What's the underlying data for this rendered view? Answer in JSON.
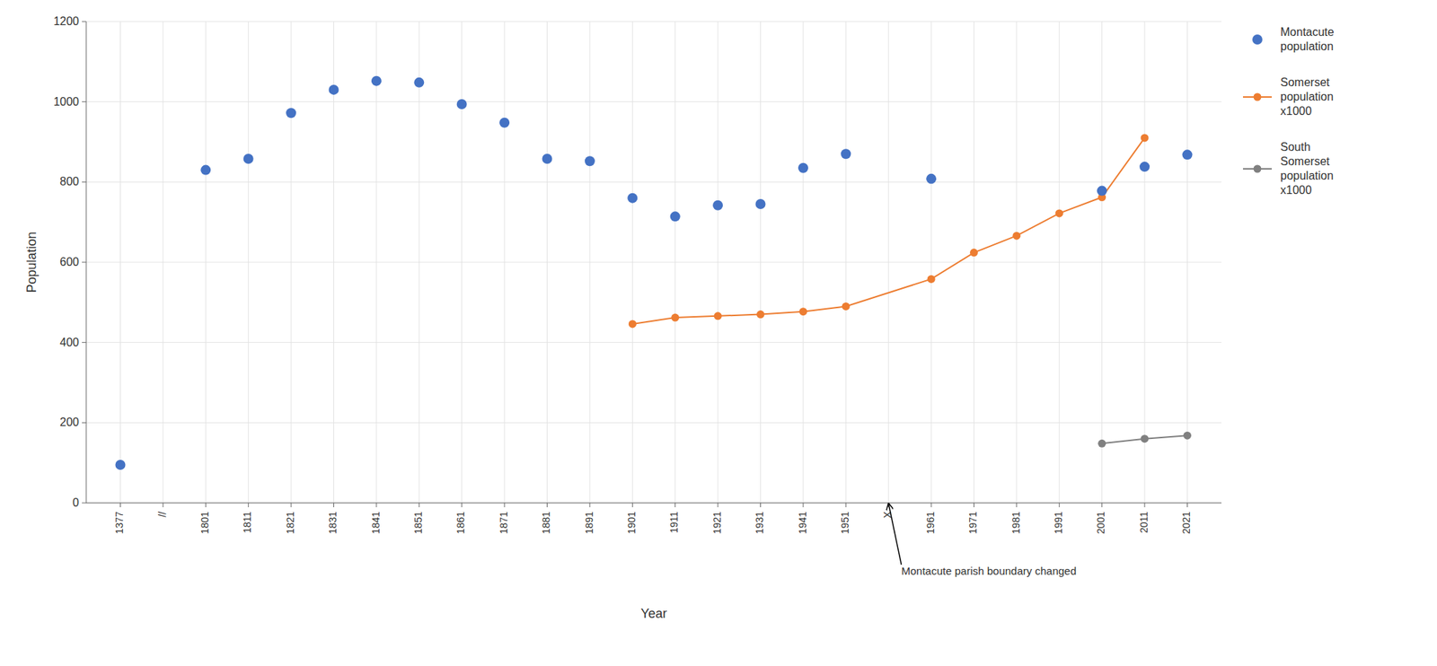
{
  "chart_data": {
    "type": "line",
    "xlabel": "Year",
    "ylabel": "Population",
    "categories": [
      "1377",
      "//",
      "1801",
      "1811",
      "1821",
      "1831",
      "1841",
      "1851",
      "1861",
      "1871",
      "1881",
      "1891",
      "1901",
      "1911",
      "1921",
      "1931",
      "1941",
      "1951",
      "X",
      "1961",
      "1971",
      "1981",
      "1991",
      "2001",
      "2011",
      "2021"
    ],
    "series": [
      {
        "name": "Montacute\npopulation",
        "type": "scatter",
        "color": "#4472C4",
        "marker": "circle",
        "x": [
          "1377",
          "1801",
          "1811",
          "1821",
          "1831",
          "1841",
          "1851",
          "1861",
          "1871",
          "1881",
          "1891",
          "1901",
          "1911",
          "1921",
          "1931",
          "1941",
          "1951",
          "1961",
          "2001",
          "2011",
          "2021"
        ],
        "values": [
          95,
          830,
          858,
          972,
          1030,
          1052,
          1048,
          994,
          948,
          858,
          852,
          760,
          714,
          742,
          745,
          835,
          870,
          808,
          778,
          838,
          868
        ]
      },
      {
        "name": "Somerset\npopulation\nx1000",
        "type": "line",
        "color": "#ED7D31",
        "marker": "circle",
        "x": [
          "1901",
          "1911",
          "1921",
          "1931",
          "1941",
          "1951",
          "1961",
          "1971",
          "1981",
          "1991",
          "2001",
          "2011"
        ],
        "values": [
          446,
          462,
          466,
          470,
          477,
          490,
          558,
          624,
          666,
          722,
          762,
          910
        ]
      },
      {
        "name": "South\nSomerset\npopulation\nx1000",
        "type": "line",
        "color": "#808080",
        "marker": "circle",
        "x": [
          "2001",
          "2011",
          "2021"
        ],
        "values": [
          148,
          160,
          168
        ]
      }
    ],
    "ylim": [
      0,
      1200
    ],
    "yticks": [
      0,
      200,
      400,
      600,
      800,
      1000,
      1200
    ],
    "grid": true,
    "legend": "right",
    "annotations": [
      {
        "text": "Montacute parish boundary changed",
        "x": "X"
      }
    ]
  }
}
